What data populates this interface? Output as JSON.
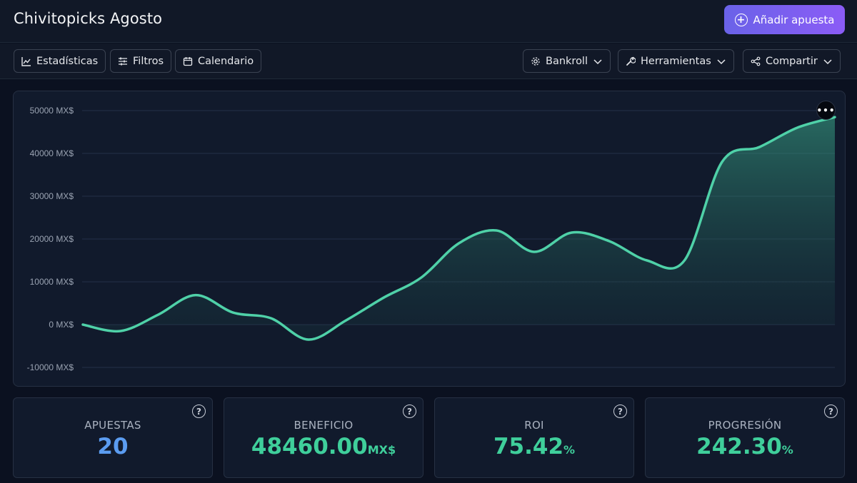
{
  "header": {
    "title": "Chivitopicks Agosto",
    "add_button": "Añadir apuesta"
  },
  "toolbar": {
    "left": [
      {
        "label": "Estadísticas",
        "icon": "line-chart-icon"
      },
      {
        "label": "Filtros",
        "icon": "sliders-icon"
      },
      {
        "label": "Calendario",
        "icon": "calendar-icon"
      }
    ],
    "right": [
      {
        "label": "Bankroll",
        "icon": "gear-icon"
      },
      {
        "label": "Herramientas",
        "icon": "wrench-icon"
      },
      {
        "label": "Compartir",
        "icon": "share-icon"
      }
    ]
  },
  "chart_data": {
    "type": "area",
    "ylim": [
      -10000,
      50000
    ],
    "yticks": [
      50000,
      40000,
      30000,
      20000,
      10000,
      0,
      -10000
    ],
    "ytick_labels": [
      "50000 MX$",
      "40000 MX$",
      "30000 MX$",
      "20000 MX$",
      "10000 MX$",
      "0 MX$",
      "-10000 MX$"
    ],
    "grid": true,
    "series": [
      {
        "values": [
          0,
          -1500,
          2300,
          6900,
          2800,
          1500,
          -3500,
          1000,
          6300,
          11000,
          19000,
          22000,
          17000,
          21500,
          19500,
          15000,
          15000,
          38000,
          41500,
          46000,
          48460
        ],
        "color": "#4fd1a8"
      }
    ]
  },
  "stats": [
    {
      "label": "APUESTAS",
      "value": "20",
      "unit": "",
      "color": "#5b9cf0"
    },
    {
      "label": "BENEFICIO",
      "value": "48460.00",
      "unit": "MX$",
      "color": "#3fcf9b"
    },
    {
      "label": "ROI",
      "value": "75.42",
      "unit": "%",
      "color": "#3fcf9b"
    },
    {
      "label": "PROGRESIÓN",
      "value": "242.30",
      "unit": "%",
      "color": "#3fcf9b"
    }
  ]
}
